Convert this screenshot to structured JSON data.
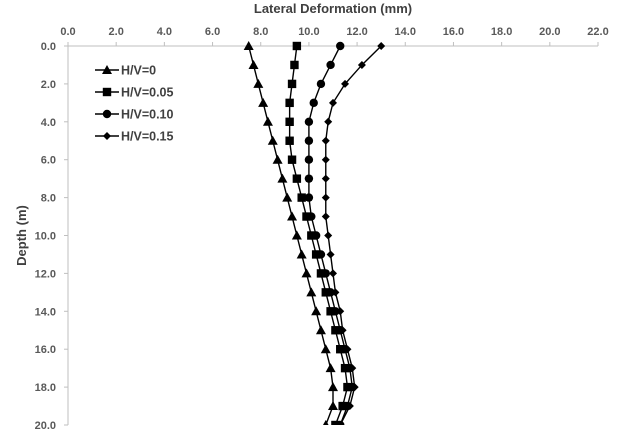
{
  "chart_data": {
    "type": "line",
    "xlabel": "Lateral Deformation (mm)",
    "ylabel": "Depth (m)",
    "x_axis_position": "top",
    "y_axis_reversed": true,
    "xlim": [
      0,
      22
    ],
    "ylim": [
      0,
      20
    ],
    "xticks": [
      0,
      2,
      4,
      6,
      8,
      10,
      12,
      14,
      16,
      18,
      20,
      22
    ],
    "yticks": [
      0,
      2,
      4,
      6,
      8,
      10,
      12,
      14,
      16,
      18,
      20
    ],
    "xtick_labels": [
      "0.0",
      "2.0",
      "4.0",
      "6.0",
      "8.0",
      "10.0",
      "12.0",
      "14.0",
      "16.0",
      "18.0",
      "20.0",
      "22.0"
    ],
    "ytick_labels": [
      "0.0",
      "2.0",
      "4.0",
      "6.0",
      "8.0",
      "10.0",
      "12.0",
      "14.0",
      "16.0",
      "18.0",
      "20.0"
    ],
    "grid": false,
    "legend_position": "top-left",
    "line_color": "#000000",
    "depth": [
      0,
      1,
      2,
      3,
      4,
      5,
      6,
      7,
      8,
      9,
      10,
      11,
      12,
      13,
      14,
      15,
      16,
      17,
      18,
      19,
      20
    ],
    "series": [
      {
        "name": "H/V=0",
        "marker": "triangle",
        "x": [
          7.5,
          7.7,
          7.9,
          8.1,
          8.3,
          8.5,
          8.7,
          8.9,
          9.1,
          9.3,
          9.5,
          9.7,
          9.9,
          10.1,
          10.3,
          10.5,
          10.7,
          10.9,
          11.0,
          11.0,
          10.7
        ]
      },
      {
        "name": "H/V=0.05",
        "marker": "square",
        "x": [
          9.5,
          9.4,
          9.3,
          9.2,
          9.2,
          9.2,
          9.3,
          9.5,
          9.7,
          9.9,
          10.1,
          10.3,
          10.5,
          10.7,
          10.9,
          11.1,
          11.3,
          11.5,
          11.6,
          11.4,
          11.1
        ]
      },
      {
        "name": "H/V=0.10",
        "marker": "circle",
        "x": [
          11.3,
          10.9,
          10.5,
          10.2,
          10.0,
          10.0,
          10.0,
          10.0,
          10.0,
          10.1,
          10.3,
          10.5,
          10.7,
          10.9,
          11.1,
          11.3,
          11.5,
          11.7,
          11.8,
          11.6,
          11.3
        ]
      },
      {
        "name": "H/V=0.15",
        "marker": "diamond",
        "x": [
          13.0,
          12.2,
          11.5,
          11.0,
          10.8,
          10.7,
          10.7,
          10.7,
          10.7,
          10.7,
          10.8,
          10.9,
          11.0,
          11.1,
          11.3,
          11.4,
          11.6,
          11.8,
          11.9,
          11.7,
          11.3
        ]
      }
    ]
  }
}
